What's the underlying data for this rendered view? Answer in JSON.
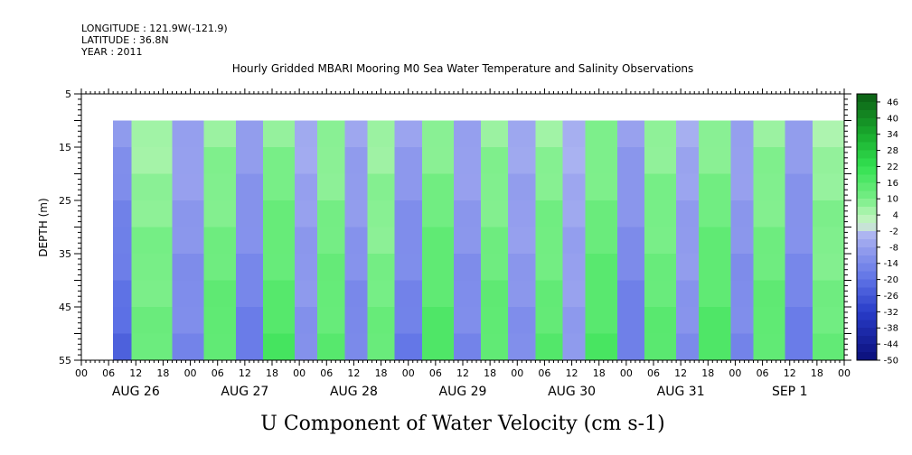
{
  "header": {
    "longitude": "LONGITUDE : 121.9W(-121.9)",
    "latitude": "LATITUDE : 36.8N",
    "year": "YEAR : 2011"
  },
  "chart_data": {
    "type": "heatmap",
    "title": "Hourly Gridded MBARI Mooring M0 Sea Water Temperature and Salinity Observations",
    "xlabel": "",
    "ylabel": "DEPTH (m)",
    "caption": "U Component of Water Velocity (cm s-1)",
    "y_ticks": [
      "5",
      "15",
      "25",
      "35",
      "45",
      "55"
    ],
    "ylim": [
      5,
      55
    ],
    "y_reversed": true,
    "data_depth_range": [
      10,
      55
    ],
    "x_hour_ticks": [
      "00",
      "06",
      "12",
      "18",
      "00",
      "06",
      "12",
      "18",
      "00",
      "06",
      "12",
      "18",
      "00",
      "06",
      "12",
      "18",
      "00",
      "06",
      "12",
      "18",
      "00",
      "06",
      "12",
      "18",
      "00",
      "06",
      "12",
      "18",
      "00"
    ],
    "x_day_labels": [
      "AUG 26",
      "AUG 27",
      "AUG 28",
      "AUG 29",
      "AUG 30",
      "AUG 31",
      "SEP  1"
    ],
    "x_range_hours": [
      0,
      168
    ],
    "data_start_hour": 7,
    "colorbar": {
      "labels": [
        "46",
        "40",
        "34",
        "28",
        "22",
        "16",
        "10",
        "4",
        "-2",
        "-8",
        "-14",
        "-20",
        "-26",
        "-32",
        "-38",
        "-44",
        "-50"
      ],
      "range": [
        -50,
        49
      ]
    },
    "colors": {
      "strong_negative": "#0b0f7a",
      "negative": "#6f7fe8",
      "weak_negative": "#a8aef0",
      "weak_positive": "#b2f2b2",
      "positive": "#4be86a",
      "strong_positive": "#0c5e14"
    },
    "bands_approx": [
      {
        "start_hour": 7,
        "end_hour": 11,
        "u": -18
      },
      {
        "start_hour": 11,
        "end_hour": 20,
        "u": 10
      },
      {
        "start_hour": 20,
        "end_hour": 27,
        "u": -12
      },
      {
        "start_hour": 27,
        "end_hour": 34,
        "u": 12
      },
      {
        "start_hour": 34,
        "end_hour": 40,
        "u": -14
      },
      {
        "start_hour": 40,
        "end_hour": 47,
        "u": 14
      },
      {
        "start_hour": 47,
        "end_hour": 52,
        "u": -10
      },
      {
        "start_hour": 52,
        "end_hour": 58,
        "u": 12
      },
      {
        "start_hour": 58,
        "end_hour": 63,
        "u": -12
      },
      {
        "start_hour": 63,
        "end_hour": 69,
        "u": 10
      },
      {
        "start_hour": 69,
        "end_hour": 75,
        "u": -14
      },
      {
        "start_hour": 75,
        "end_hour": 82,
        "u": 14
      },
      {
        "start_hour": 82,
        "end_hour": 88,
        "u": -12
      },
      {
        "start_hour": 88,
        "end_hour": 94,
        "u": 12
      },
      {
        "start_hour": 94,
        "end_hour": 100,
        "u": -10
      },
      {
        "start_hour": 100,
        "end_hour": 106,
        "u": 12
      },
      {
        "start_hour": 106,
        "end_hour": 111,
        "u": -8
      },
      {
        "start_hour": 111,
        "end_hour": 118,
        "u": 14
      },
      {
        "start_hour": 118,
        "end_hour": 124,
        "u": -14
      },
      {
        "start_hour": 124,
        "end_hour": 131,
        "u": 12
      },
      {
        "start_hour": 131,
        "end_hour": 136,
        "u": -10
      },
      {
        "start_hour": 136,
        "end_hour": 143,
        "u": 14
      },
      {
        "start_hour": 143,
        "end_hour": 148,
        "u": -12
      },
      {
        "start_hour": 148,
        "end_hour": 155,
        "u": 12
      },
      {
        "start_hour": 155,
        "end_hour": 161,
        "u": -14
      },
      {
        "start_hour": 161,
        "end_hour": 168,
        "u": 10
      }
    ]
  }
}
